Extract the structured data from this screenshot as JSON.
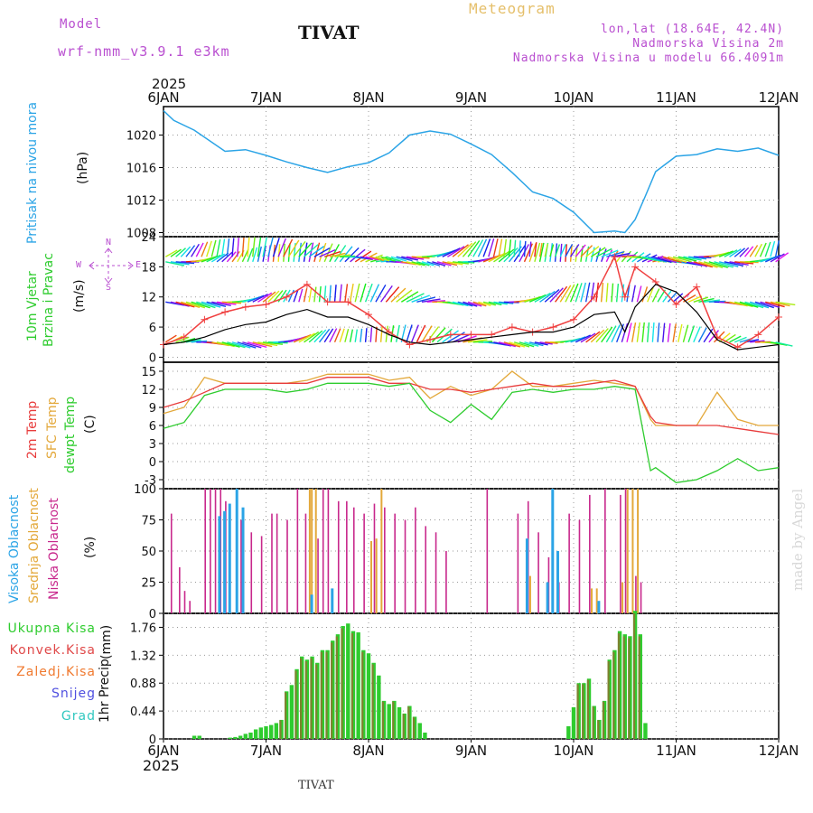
{
  "header": {
    "model_label": "Model",
    "model_name": "wrf-nmm_v3.9.1 e3km",
    "station": "TIVAT",
    "meteogram": "Meteogram",
    "lonlat": "lon,lat (18.64E, 42.4N)",
    "altitude": "Nadmorska Visina 2m",
    "model_altitude": "Nadmorska Visina u modelu 66.4091m",
    "year_top": "2025",
    "year_bottom": "2025",
    "footer_station": "TIVAT",
    "credit": "made by Angel"
  },
  "colors": {
    "pressure": "#2ba4e6",
    "wind_speed": "#000000",
    "wind_gust": "#f04040",
    "temp2m": "#e83c3c",
    "sfc_temp": "#e3a83a",
    "dewpt": "#2ecc2e",
    "high_cloud": "#2ba4e6",
    "mid_cloud": "#e3a83a",
    "low_cloud": "#c8288c",
    "total_precip": "#2ecc2e",
    "conv_precip": "#e04848",
    "frozen": "#f07a30",
    "snow": "#5050e0",
    "graupel": "#30c8c0",
    "label_magenta": "#b94fd0"
  },
  "chart_data": [
    {
      "type": "line",
      "id": "pressure",
      "ylabel_name": "Pritisak na nivou mora",
      "ylabel_unit": "(hPa)",
      "ylim": [
        1007.5,
        1023.5
      ],
      "yticks": [
        1008,
        1012,
        1016,
        1020
      ],
      "x_days": [
        0,
        0.1,
        0.3,
        0.6,
        0.8,
        1.0,
        1.2,
        1.4,
        1.6,
        1.8,
        2.0,
        2.2,
        2.4,
        2.6,
        2.8,
        3.0,
        3.2,
        3.4,
        3.6,
        3.8,
        4.0,
        4.2,
        4.4,
        4.5,
        4.6,
        4.7,
        4.8,
        5.0,
        5.2,
        5.4,
        5.6,
        5.8,
        6.0
      ],
      "series": [
        {
          "name": "pressure",
          "values": [
            1023.0,
            1021.8,
            1020.6,
            1018.0,
            1018.2,
            1017.5,
            1016.7,
            1016.0,
            1015.4,
            1016.1,
            1016.6,
            1017.8,
            1020.0,
            1020.5,
            1020.1,
            1018.9,
            1017.6,
            1015.4,
            1013.0,
            1012.2,
            1010.5,
            1008.0,
            1008.2,
            1008.0,
            1009.6,
            1012.5,
            1015.5,
            1017.4,
            1017.6,
            1018.3,
            1018.0,
            1018.4,
            1017.5
          ]
        }
      ]
    },
    {
      "type": "line",
      "id": "wind",
      "ylabel_name": "10m Vjetar",
      "ylabel_name2": "Brzina i Pravac",
      "ylabel_unit": "(m/s)",
      "ylim": [
        -1,
        24
      ],
      "yticks": [
        0,
        6,
        12,
        18,
        24
      ],
      "compass": {
        "north": "N",
        "south": "S",
        "west": "W",
        "east": "E"
      },
      "barb_rows": [
        3,
        11,
        19,
        20
      ],
      "x_days": [
        0,
        0.2,
        0.4,
        0.6,
        0.8,
        1.0,
        1.2,
        1.4,
        1.6,
        1.8,
        2.0,
        2.2,
        2.4,
        2.6,
        2.8,
        3.0,
        3.2,
        3.4,
        3.6,
        3.8,
        4.0,
        4.2,
        4.4,
        4.5,
        4.6,
        4.8,
        5.0,
        5.2,
        5.4,
        5.6,
        5.8,
        6.0
      ],
      "series": [
        {
          "name": "wind_speed",
          "values": [
            2.5,
            3.0,
            4.0,
            5.5,
            6.5,
            7.0,
            8.5,
            9.5,
            8.0,
            8.0,
            6.5,
            4.5,
            3.0,
            2.5,
            3.0,
            3.5,
            4.0,
            4.5,
            5.0,
            5.0,
            6.0,
            8.5,
            9.0,
            5.0,
            10.0,
            14.5,
            13.0,
            9.0,
            3.5,
            1.5,
            2.0,
            2.5
          ]
        },
        {
          "name": "wind_gust",
          "values": [
            2.5,
            4.0,
            7.5,
            9.0,
            10.0,
            10.5,
            12.0,
            14.5,
            11.0,
            11.0,
            8.5,
            5.0,
            2.5,
            3.5,
            4.5,
            4.5,
            4.5,
            6.0,
            5.0,
            6.0,
            7.5,
            12.0,
            20.0,
            12.0,
            18.0,
            15.0,
            10.5,
            14.0,
            4.0,
            2.0,
            4.5,
            8.0
          ]
        }
      ]
    },
    {
      "type": "line",
      "id": "temperature",
      "ylabel_name": "2m Temp",
      "ylabel_name2": "SFC Temp",
      "ylabel_name3": "dewpt Temp",
      "ylabel_unit": "(C)",
      "ylim": [
        -4.5,
        16.5
      ],
      "yticks": [
        -3,
        0,
        3,
        6,
        9,
        12,
        15
      ],
      "x_days": [
        0,
        0.2,
        0.4,
        0.6,
        0.8,
        1.0,
        1.2,
        1.4,
        1.6,
        1.8,
        2.0,
        2.2,
        2.4,
        2.6,
        2.8,
        3.0,
        3.2,
        3.4,
        3.6,
        3.8,
        4.0,
        4.2,
        4.4,
        4.6,
        4.75,
        4.8,
        5.0,
        5.2,
        5.4,
        5.6,
        5.8,
        6.0
      ],
      "series": [
        {
          "name": "2m Temp",
          "values": [
            9.0,
            10.0,
            11.5,
            13.0,
            13.0,
            13.0,
            13.0,
            13.0,
            14.0,
            14.0,
            14.0,
            13.0,
            13.0,
            12.0,
            12.0,
            11.5,
            12.0,
            12.5,
            13.0,
            12.5,
            12.5,
            13.0,
            13.5,
            12.5,
            7.5,
            6.5,
            6.0,
            6.0,
            6.0,
            5.5,
            5.0,
            4.5
          ]
        },
        {
          "name": "SFC Temp",
          "values": [
            8.0,
            9.0,
            14.0,
            13.0,
            13.0,
            13.0,
            13.0,
            13.5,
            14.5,
            14.5,
            14.5,
            13.5,
            14.0,
            10.5,
            12.5,
            11.0,
            12.0,
            15.0,
            12.5,
            12.5,
            13.0,
            13.5,
            13.0,
            12.5,
            7.0,
            6.0,
            6.0,
            6.0,
            11.5,
            7.0,
            6.0,
            6.0
          ]
        },
        {
          "name": "dewpt Temp",
          "values": [
            5.5,
            6.5,
            11.0,
            12.0,
            12.0,
            12.0,
            11.5,
            12.0,
            13.0,
            13.0,
            13.0,
            12.5,
            13.0,
            8.5,
            6.5,
            9.5,
            7.0,
            11.5,
            12.0,
            11.5,
            12.0,
            12.0,
            12.5,
            12.0,
            -1.5,
            -1.0,
            -3.5,
            -3.0,
            -1.5,
            0.5,
            -1.5,
            -1.0
          ]
        }
      ]
    },
    {
      "type": "bar",
      "id": "clouds",
      "ylabel_name": "Visoka Oblacnost",
      "ylabel_name2": "Srednja Oblacnost",
      "ylabel_name3": "Niska Oblacnost",
      "ylabel_unit": "(%)",
      "ylim": [
        0,
        100
      ],
      "yticks": [
        0,
        25,
        50,
        75,
        100
      ],
      "low": [
        [
          0.07,
          80
        ],
        [
          0.15,
          37
        ],
        [
          0.2,
          18
        ],
        [
          0.25,
          10
        ],
        [
          0.4,
          100
        ],
        [
          0.45,
          100
        ],
        [
          0.5,
          100
        ],
        [
          0.55,
          100
        ],
        [
          0.6,
          90
        ],
        [
          0.75,
          75
        ],
        [
          0.85,
          65
        ],
        [
          0.95,
          62
        ],
        [
          1.05,
          80
        ],
        [
          1.1,
          80
        ],
        [
          1.2,
          75
        ],
        [
          1.3,
          100
        ],
        [
          1.38,
          80
        ],
        [
          1.5,
          60
        ],
        [
          1.55,
          100
        ],
        [
          1.6,
          100
        ],
        [
          1.7,
          90
        ],
        [
          1.78,
          90
        ],
        [
          1.85,
          85
        ],
        [
          1.95,
          80
        ],
        [
          2.05,
          88
        ],
        [
          2.15,
          85
        ],
        [
          2.25,
          80
        ],
        [
          2.35,
          75
        ],
        [
          2.45,
          85
        ],
        [
          2.55,
          70
        ],
        [
          2.65,
          65
        ],
        [
          2.75,
          50
        ],
        [
          3.15,
          100
        ],
        [
          3.45,
          80
        ],
        [
          3.55,
          90
        ],
        [
          3.65,
          65
        ],
        [
          3.75,
          45
        ],
        [
          3.85,
          25
        ],
        [
          3.95,
          80
        ],
        [
          4.05,
          75
        ],
        [
          4.15,
          95
        ],
        [
          4.3,
          100
        ],
        [
          4.45,
          95
        ],
        [
          4.5,
          100
        ],
        [
          4.6,
          30
        ],
        [
          4.65,
          25
        ]
      ],
      "mid": [
        [
          1.4,
          100
        ],
        [
          1.42,
          100
        ],
        [
          1.46,
          100
        ],
        [
          2.0,
          58
        ],
        [
          2.05,
          60
        ],
        [
          2.1,
          100
        ],
        [
          3.55,
          30
        ],
        [
          4.15,
          20
        ],
        [
          4.2,
          20
        ],
        [
          4.45,
          25
        ],
        [
          4.5,
          100
        ],
        [
          4.55,
          100
        ],
        [
          4.6,
          100
        ]
      ],
      "high": [
        [
          0.55,
          78
        ],
        [
          0.6,
          82
        ],
        [
          0.65,
          88
        ],
        [
          0.72,
          100
        ],
        [
          0.78,
          85
        ],
        [
          1.45,
          15
        ],
        [
          1.65,
          20
        ],
        [
          3.55,
          60
        ],
        [
          3.75,
          25
        ],
        [
          3.8,
          100
        ],
        [
          3.85,
          50
        ],
        [
          4.25,
          10
        ]
      ]
    },
    {
      "type": "bar",
      "id": "precip",
      "ylabel_name": "1hr Precip",
      "ylabel_unit": "(mm)",
      "ylim": [
        0,
        1.98
      ],
      "yticks": [
        0,
        0.44,
        0.88,
        1.32,
        1.76
      ],
      "legend": [
        "Ukupna Kisa",
        "Konvek.Kisa",
        "Zaledj.Kisa",
        "Snijeg",
        "Grad"
      ],
      "x_days": [
        0.3,
        0.35,
        0.65,
        0.7,
        0.75,
        0.8,
        0.85,
        0.9,
        0.95,
        1.0,
        1.05,
        1.1,
        1.15,
        1.2,
        1.25,
        1.3,
        1.35,
        1.4,
        1.45,
        1.5,
        1.55,
        1.6,
        1.65,
        1.7,
        1.75,
        1.8,
        1.85,
        1.9,
        1.95,
        2.0,
        2.05,
        2.1,
        2.15,
        2.2,
        2.25,
        2.3,
        2.35,
        2.4,
        2.45,
        2.5,
        2.55,
        3.95,
        4.0,
        4.05,
        4.1,
        4.15,
        4.2,
        4.25,
        4.3,
        4.35,
        4.4,
        4.45,
        4.5,
        4.55,
        4.6,
        4.65,
        4.7
      ],
      "values": [
        0.05,
        0.05,
        0.02,
        0.03,
        0.05,
        0.08,
        0.1,
        0.15,
        0.18,
        0.2,
        0.22,
        0.25,
        0.3,
        0.75,
        0.85,
        1.1,
        1.3,
        1.25,
        1.3,
        1.2,
        1.4,
        1.4,
        1.55,
        1.65,
        1.78,
        1.82,
        1.7,
        1.68,
        1.4,
        1.35,
        1.2,
        1.0,
        0.6,
        0.55,
        0.6,
        0.5,
        0.4,
        0.52,
        0.35,
        0.25,
        0.1,
        0.2,
        0.5,
        0.88,
        0.88,
        0.95,
        0.52,
        0.3,
        0.6,
        1.25,
        1.4,
        1.7,
        1.65,
        1.62,
        2.02,
        1.65,
        0.25
      ],
      "convective": [
        0.3,
        0.75,
        1.1,
        1.3,
        1.2,
        1.4,
        1.55,
        1.65,
        1.78,
        1.7,
        1.4,
        1.2,
        0.6,
        0.6,
        0.4,
        0.35,
        0.88,
        0.88,
        0.95,
        0.52,
        0.3,
        0.6,
        1.25,
        1.4,
        1.65,
        1.62,
        2.02,
        1.65
      ]
    }
  ],
  "x_axis": {
    "day_labels": [
      "6JAN",
      "7JAN",
      "8JAN",
      "9JAN",
      "10JAN",
      "11JAN",
      "12JAN"
    ]
  }
}
